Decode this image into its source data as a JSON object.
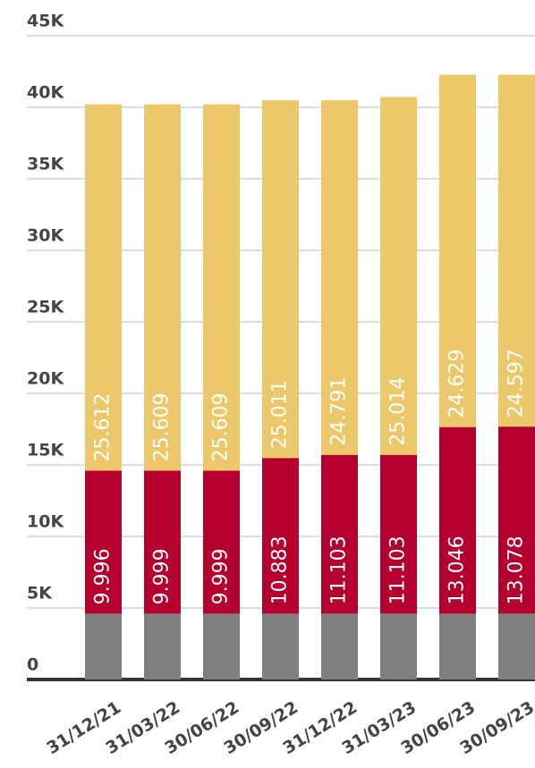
{
  "chart_data": {
    "type": "stacked_bar",
    "categories": [
      "31/12/21",
      "31/03/22",
      "30/06/22",
      "30/09/22",
      "31/12/22",
      "31/03/23",
      "30/06/23",
      "30/09/23"
    ],
    "series": [
      {
        "color": "#808080",
        "values": [
          4600,
          4600,
          4600,
          4600,
          4600,
          4600,
          4600,
          4600
        ]
      },
      {
        "color": "#b5002f",
        "values": [
          9996,
          9999,
          9999,
          10883,
          11103,
          11103,
          13046,
          13078
        ],
        "value_labels": [
          "9.996",
          "9.999",
          "9.999",
          "10.883",
          "11.103",
          "11.103",
          "13.046",
          "13.078"
        ]
      },
      {
        "color": "#ecc86a",
        "values": [
          25612,
          25609,
          25609,
          25011,
          24791,
          25014,
          24629,
          24597
        ],
        "value_labels": [
          "25.612",
          "25.609",
          "25.609",
          "25.011",
          "24.791",
          "25.014",
          "24.629",
          "24.597"
        ]
      }
    ],
    "ylim": [
      0,
      45000
    ],
    "yticks": [
      {
        "value": 0,
        "label": "0"
      },
      {
        "value": 5000,
        "label": "5K"
      },
      {
        "value": 10000,
        "label": "10K"
      },
      {
        "value": 15000,
        "label": "15K"
      },
      {
        "value": 20000,
        "label": "20K"
      },
      {
        "value": 25000,
        "label": "25K"
      },
      {
        "value": 30000,
        "label": "30K"
      },
      {
        "value": 35000,
        "label": "35K"
      },
      {
        "value": 40000,
        "label": "40K"
      },
      {
        "value": 45000,
        "label": "45K"
      }
    ],
    "grid": true
  }
}
